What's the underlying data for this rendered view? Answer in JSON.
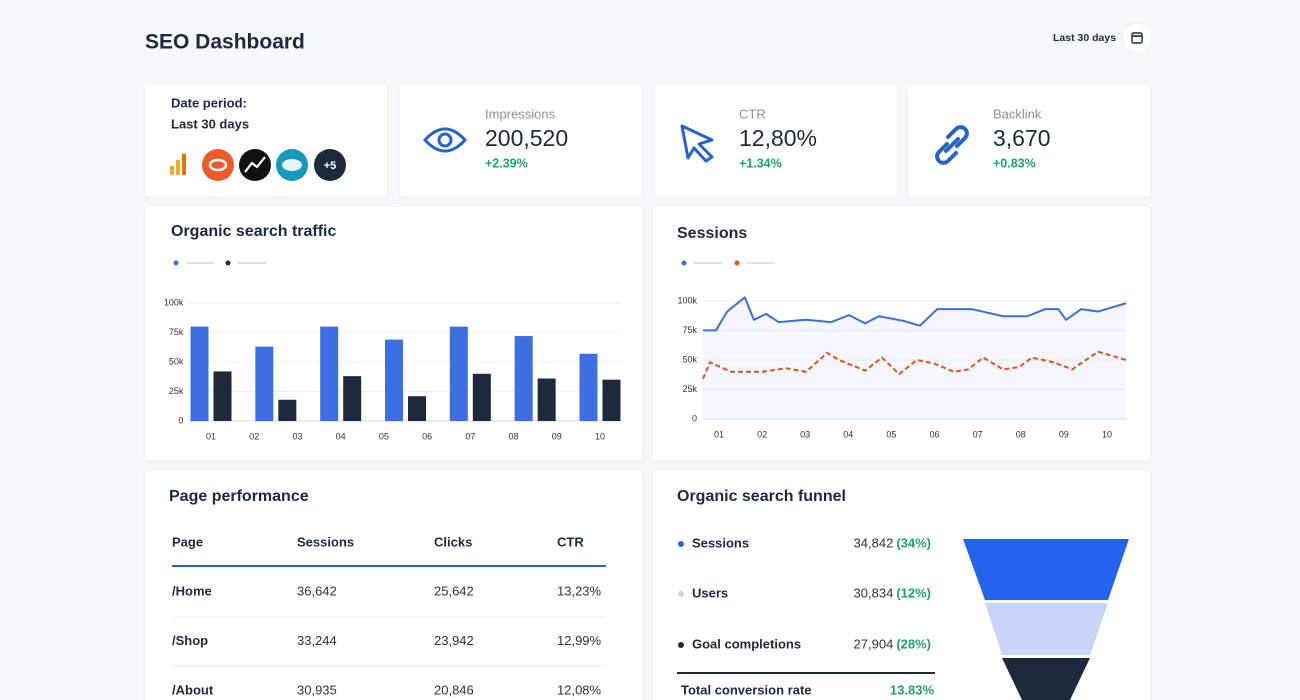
{
  "header": {
    "title": "SEO Dashboard",
    "period": "Last 30 days"
  },
  "date_card": {
    "label": "Date period:",
    "value": "Last 30 days",
    "more": "+5"
  },
  "kpis": [
    {
      "label": "Impressions",
      "value": "200,520",
      "delta": "+2.39%"
    },
    {
      "label": "CTR",
      "value": "12,80%",
      "delta": "+1.34%"
    },
    {
      "label": "Backlink",
      "value": "3,670",
      "delta": "+0.83%"
    }
  ],
  "charts": {
    "traffic": {
      "type": "bar",
      "title": "Organic search traffic",
      "x": [
        1,
        2.5,
        4,
        5.5,
        7,
        8.5,
        10
      ],
      "xlim": [
        0.5,
        10.5
      ],
      "xticks": [
        {
          "value": 1,
          "label": "01"
        },
        {
          "value": 2,
          "label": "02"
        },
        {
          "value": 3,
          "label": "03"
        },
        {
          "value": 4,
          "label": "04"
        },
        {
          "value": 5,
          "label": "05"
        },
        {
          "value": 6,
          "label": "06"
        },
        {
          "value": 7,
          "label": "07"
        },
        {
          "value": 8,
          "label": "08"
        },
        {
          "value": 9,
          "label": "09"
        },
        {
          "value": 10,
          "label": "10"
        }
      ],
      "ylim": [
        0,
        100000
      ],
      "yticks": [
        0,
        {
          "value": 25000,
          "label": "25k"
        },
        {
          "value": 50000,
          "label": "50k"
        },
        {
          "value": 75000,
          "label": "75k"
        },
        {
          "value": 100000,
          "label": "100k"
        }
      ],
      "grid": true,
      "series": [
        {
          "color": "#3d6fe3",
          "values": [
            80000,
            63000,
            80000,
            69000,
            80000,
            72000,
            57000
          ]
        },
        {
          "color": "#1e2a3b",
          "values": [
            42000,
            18000,
            38000,
            21000,
            40000,
            36000,
            35000
          ]
        }
      ]
    },
    "sessions": {
      "type": "line",
      "title": "Sessions",
      "xlim": [
        0.63,
        10.44
      ],
      "xticks": [
        {
          "value": 1,
          "label": "01"
        },
        {
          "value": 2,
          "label": "02"
        },
        {
          "value": 3,
          "label": "03"
        },
        {
          "value": 4,
          "label": "04"
        },
        {
          "value": 5,
          "label": "05"
        },
        {
          "value": 6,
          "label": "06"
        },
        {
          "value": 7,
          "label": "07"
        },
        {
          "value": 8,
          "label": "08"
        },
        {
          "value": 9,
          "label": "09"
        },
        {
          "value": 10,
          "label": "10"
        }
      ],
      "ylim": [
        0,
        105000
      ],
      "yticks": [
        0,
        {
          "value": 25000,
          "label": "25k"
        },
        {
          "value": 50000,
          "label": "50k"
        },
        {
          "value": 75000,
          "label": "75k"
        },
        {
          "value": 100000,
          "label": "100k"
        }
      ],
      "grid": true,
      "series": [
        {
          "color": "#3d6fd6",
          "dashed": false,
          "area": true,
          "x": [
            0.63,
            0.93,
            1.19,
            1.6,
            1.81,
            2.09,
            2.39,
            3.02,
            3.6,
            4.02,
            4.39,
            4.71,
            5.29,
            5.66,
            6.06,
            6.87,
            7.59,
            8.15,
            8.56,
            8.87,
            9.05,
            9.4,
            9.79,
            10.44
          ],
          "values": [
            75000,
            75000,
            91000,
            103000,
            84000,
            89000,
            82000,
            84000,
            82000,
            88000,
            81000,
            87000,
            83000,
            79000,
            93000,
            93000,
            87000,
            87000,
            93000,
            93000,
            84000,
            93000,
            91000,
            98000
          ]
        },
        {
          "color": "#e0541c",
          "dashed": true,
          "area": false,
          "x": [
            0.63,
            0.79,
            1.28,
            2.02,
            2.55,
            3.02,
            3.51,
            3.78,
            4.39,
            4.78,
            5.18,
            5.59,
            5.99,
            6.45,
            6.78,
            7.13,
            7.59,
            7.96,
            8.26,
            8.77,
            9.19,
            9.79,
            10.44
          ],
          "values": [
            34000,
            48000,
            40000,
            40000,
            43000,
            40000,
            56000,
            50000,
            41000,
            52000,
            38000,
            50000,
            47000,
            40000,
            42000,
            52000,
            42000,
            44000,
            52000,
            48000,
            42000,
            57000,
            50000
          ]
        }
      ]
    }
  },
  "table": {
    "title": "Page performance",
    "columns": [
      "Page",
      "Sessions",
      "Clicks",
      "CTR"
    ],
    "rows": [
      [
        "/Home",
        "36,642",
        "25,642",
        "13,23%"
      ],
      [
        "/Shop",
        "33,244",
        "23,942",
        "12,99%"
      ],
      [
        "/About",
        "30,935",
        "20,846",
        "12,08%"
      ]
    ]
  },
  "funnel": {
    "title": "Organic search funnel",
    "items": [
      {
        "label": "Sessions",
        "value": "34,842",
        "share": "(34%)",
        "color": "#2463eb"
      },
      {
        "label": "Users",
        "value": "30,834",
        "share": "(12%)",
        "color": "#c9d5f6"
      },
      {
        "label": "Goal completions",
        "value": "27,904",
        "share": "(28%)",
        "color": "#1e2a3b"
      }
    ],
    "total_label": "Total conversion rate",
    "total_value": "13.83%"
  }
}
